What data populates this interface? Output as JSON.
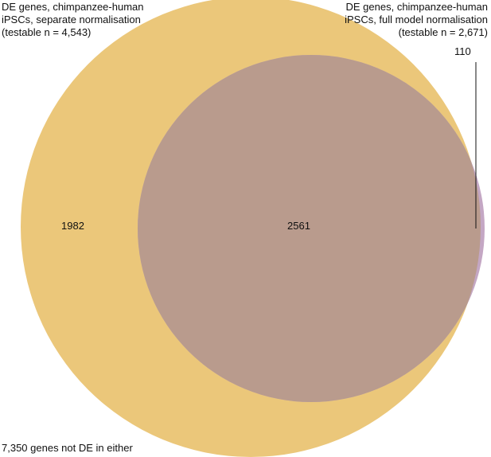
{
  "set_a": {
    "label_lines": [
      "DE genes, chimpanzee-human",
      "iPSCs, separate normalisation",
      "(testable n = 4,543)"
    ],
    "color": "#ebc77a"
  },
  "set_b": {
    "label_lines": [
      "DE genes, chimpanzee-human",
      "iPSCs, full model normalisation",
      "(testable n = 2,671)"
    ],
    "color": "#c4a7c4"
  },
  "overlap_color": "#b99b8d",
  "counts": {
    "a_only": "1982",
    "both": "2561",
    "b_only": "110"
  },
  "footer": "7,350 genes not DE in either"
}
